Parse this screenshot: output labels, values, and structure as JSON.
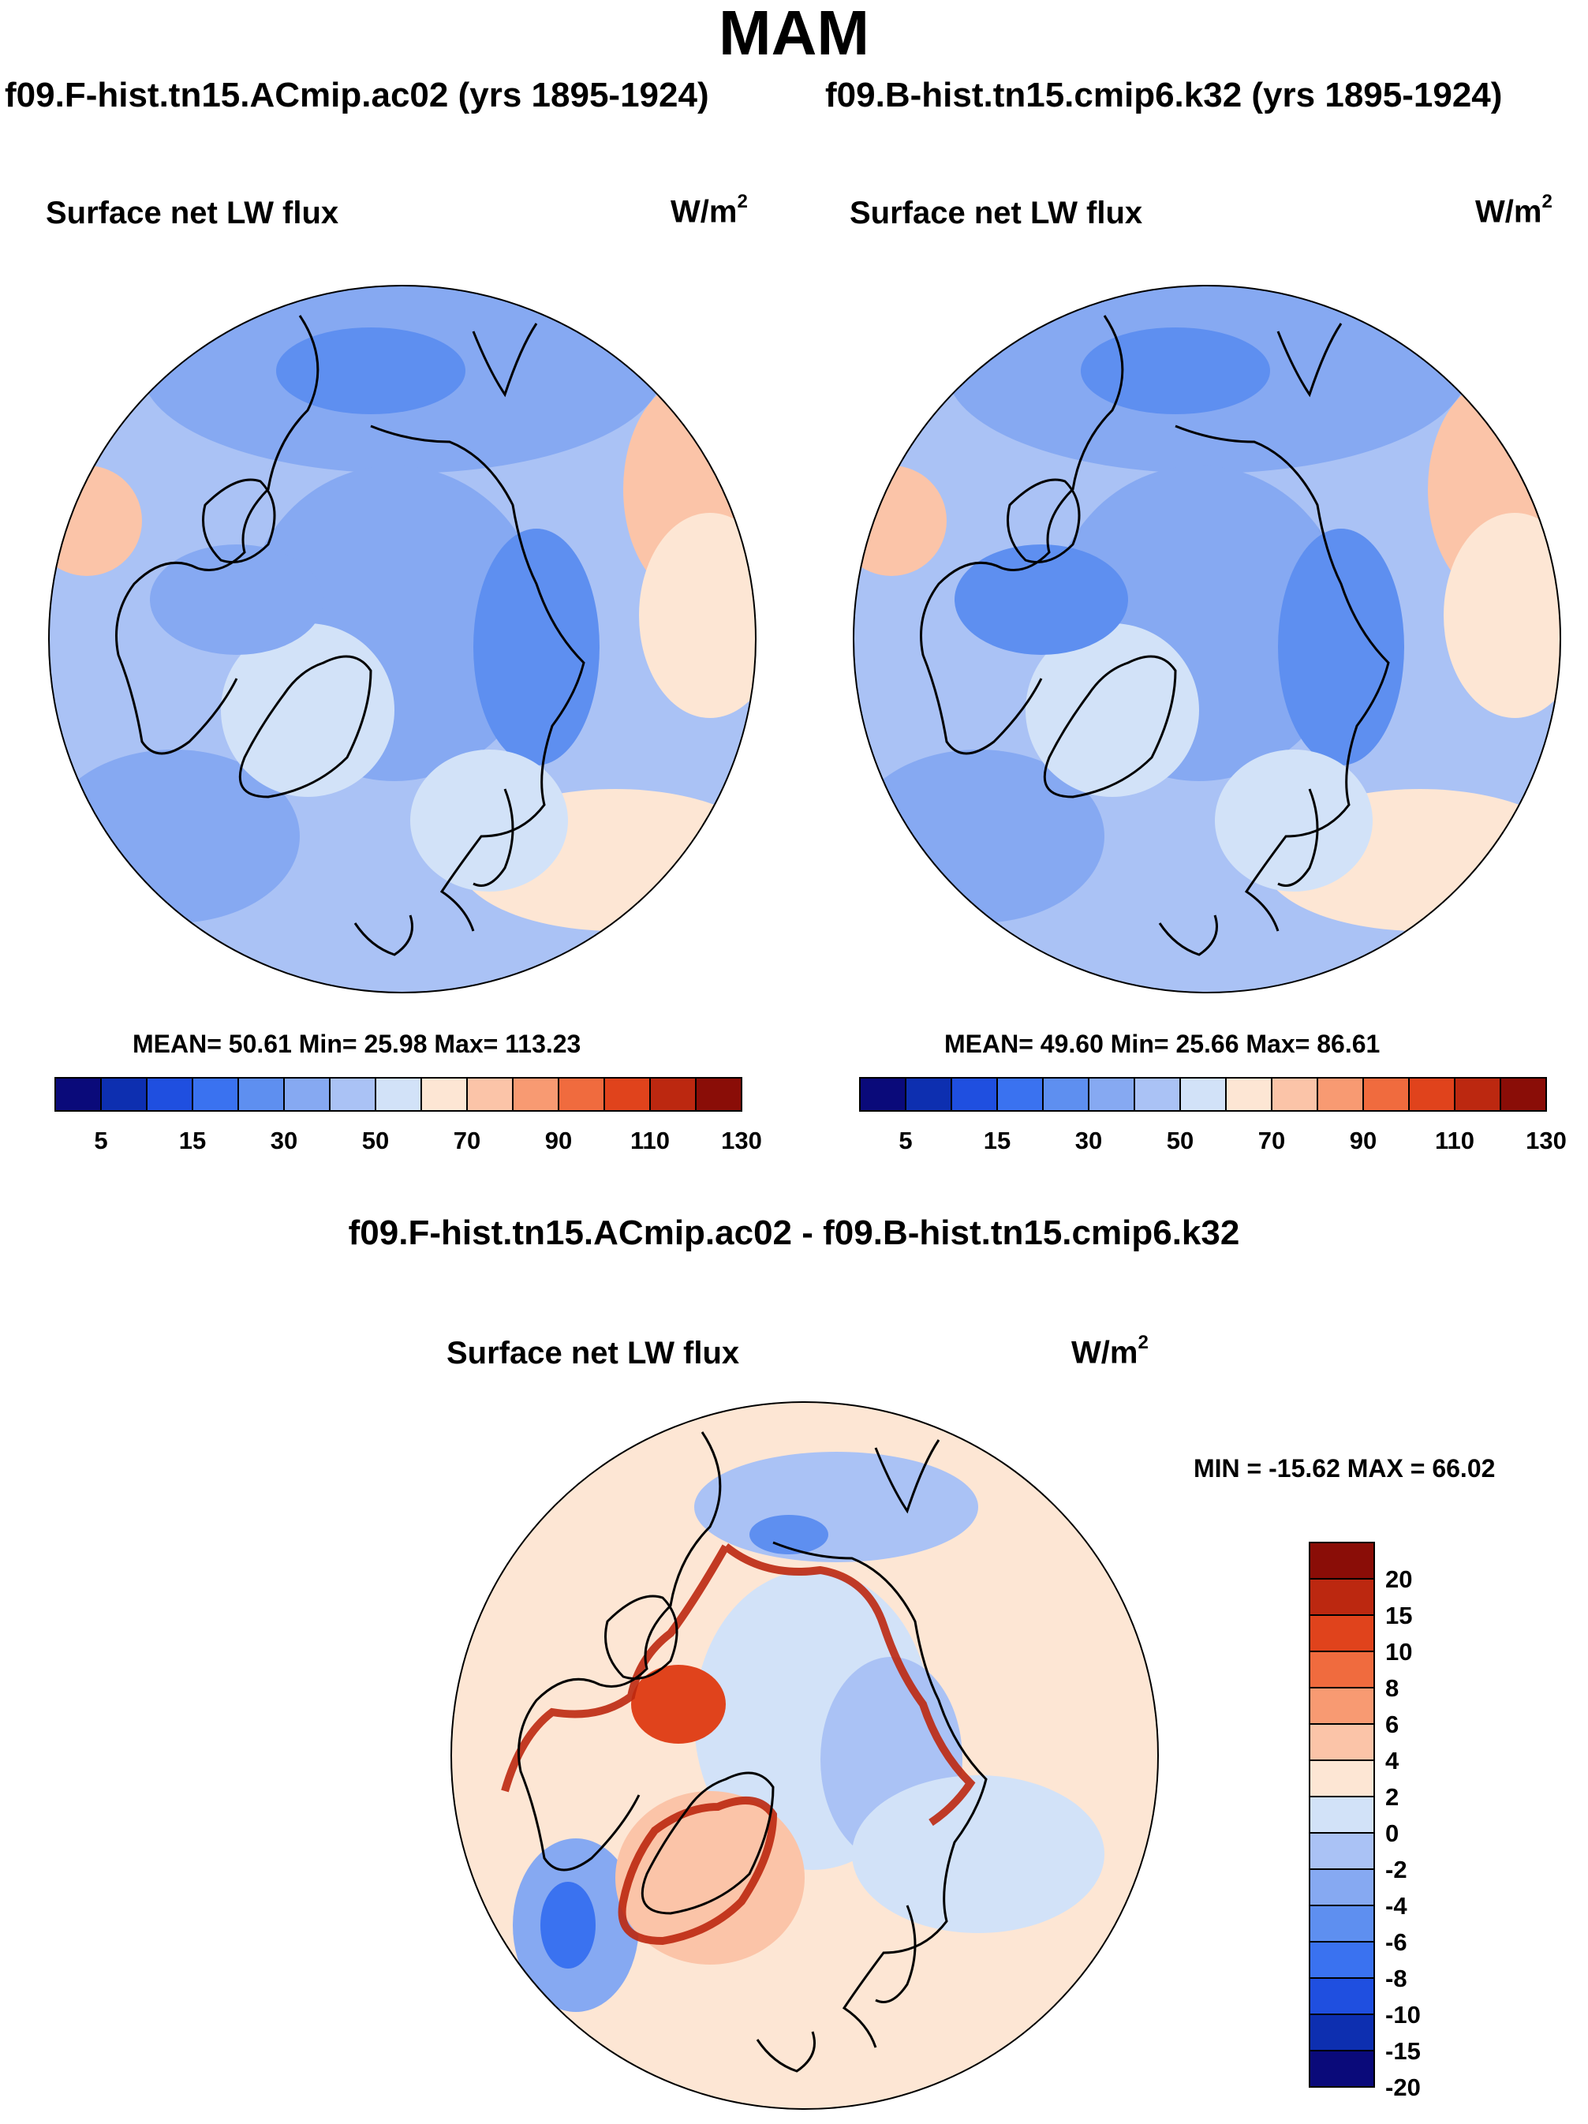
{
  "season": "MAM",
  "runs": {
    "left": "f09.F-hist.tn15.ACmip.ac02 (yrs 1895-1924)",
    "right": "f09.B-hist.tn15.cmip6.k32 (yrs 1895-1924)"
  },
  "variable": "Surface net LW flux",
  "units": "W/m",
  "units_exp": "2",
  "panels": {
    "left": {
      "stats": "MEAN=  50.61  Min=  25.98  Max= 113.23"
    },
    "right": {
      "stats": "MEAN=  49.60  Min=  25.66  Max=  86.61"
    },
    "diff": {
      "title": "f09.F-hist.tn15.ACmip.ac02 - f09.B-hist.tn15.cmip6.k32",
      "stats": "MIN = -15.62 MAX =  66.02"
    }
  },
  "colorbar_abs": {
    "colors": [
      "#0a0a7a",
      "#0d2fb0",
      "#1f4fe0",
      "#3a72f0",
      "#5e8ff0",
      "#86a9f2",
      "#aac2f5",
      "#d2e2f8",
      "#fde6d4",
      "#fbc4a8",
      "#f89a72",
      "#f06b3e",
      "#e0431c",
      "#bc2810",
      "#8a0d07"
    ],
    "labels": [
      "5",
      "15",
      "30",
      "50",
      "70",
      "90",
      "110",
      "130"
    ]
  },
  "colorbar_diff": {
    "colors": [
      "#8a0d07",
      "#bc2810",
      "#e0431c",
      "#f06b3e",
      "#f89a72",
      "#fbc4a8",
      "#fde6d4",
      "#d2e2f8",
      "#aac2f5",
      "#86a9f2",
      "#5e8ff0",
      "#3a72f0",
      "#1f4fe0",
      "#0d2fb0",
      "#0a0a7a"
    ],
    "labels": [
      "20",
      "15",
      "10",
      "8",
      "6",
      "4",
      "2",
      "0",
      "-2",
      "-4",
      "-6",
      "-8",
      "-10",
      "-15",
      "-20"
    ]
  }
}
